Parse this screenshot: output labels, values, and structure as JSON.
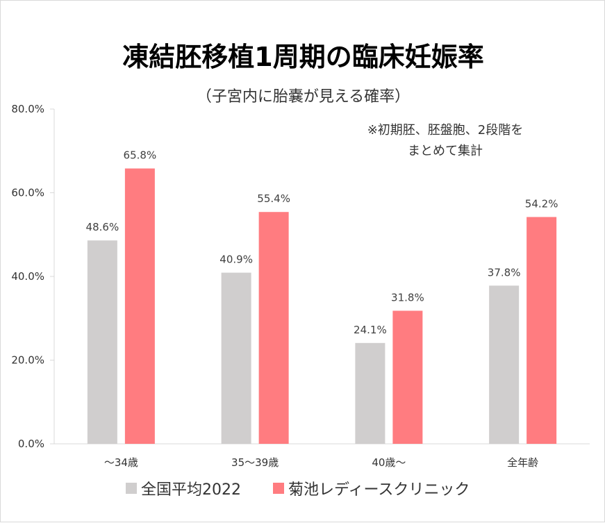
{
  "chart_data": {
    "type": "bar",
    "title": "凍結胚移植1周期の臨床妊娠率",
    "subtitle": "（子宮内に胎嚢が見える確率）",
    "annotation": [
      "※初期胚、胚盤胞、2段階を",
      "まとめて集計"
    ],
    "categories": [
      "～34歳",
      "35～39歳",
      "40歳～",
      "全年齢"
    ],
    "series": [
      {
        "name": "全国平均2022",
        "color": "#d0cece",
        "values": [
          48.6,
          40.9,
          24.1,
          37.8
        ],
        "labels": [
          "48.6%",
          "40.9%",
          "24.1%",
          "37.8%"
        ]
      },
      {
        "name": "菊池レディースクリニック",
        "color": "#ff7c80",
        "values": [
          65.8,
          55.4,
          31.8,
          54.2
        ],
        "labels": [
          "65.8%",
          "55.4%",
          "31.8%",
          "54.2%"
        ]
      }
    ],
    "ylim": [
      0,
      80
    ],
    "yticks": [
      0,
      20,
      40,
      60,
      80
    ],
    "ytick_labels": [
      "0.0%",
      "20.0%",
      "40.0%",
      "60.0%",
      "80.0%"
    ],
    "xlabel": "",
    "ylabel": "",
    "grid": false,
    "legend_position": "bottom"
  }
}
